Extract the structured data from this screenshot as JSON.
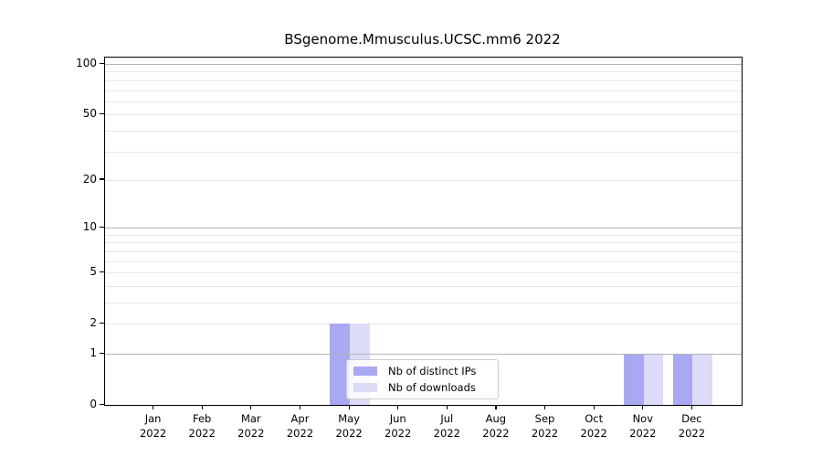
{
  "title": "BSgenome.Mmusculus.UCSC.mm6 2022",
  "chart_data": {
    "type": "bar",
    "categories": [
      "Jan",
      "Feb",
      "Mar",
      "Apr",
      "May",
      "Jun",
      "Jul",
      "Aug",
      "Sep",
      "Oct",
      "Nov",
      "Dec"
    ],
    "year_label": "2022",
    "series": [
      {
        "name": "Nb of distinct IPs",
        "color": "#a9a9f3",
        "values": [
          0,
          0,
          0,
          0,
          2,
          0,
          0,
          0,
          0,
          0,
          1,
          1
        ]
      },
      {
        "name": "Nb of downloads",
        "color": "#dcdcf8",
        "values": [
          0,
          0,
          0,
          0,
          2,
          0,
          0,
          0,
          0,
          0,
          1,
          1
        ]
      }
    ],
    "title": "BSgenome.Mmusculus.UCSC.mm6 2022",
    "xlabel": "",
    "ylabel": "",
    "yscale": "log1p",
    "ylim": [
      0,
      109
    ],
    "yticks": [
      0,
      1,
      2,
      5,
      10,
      20,
      50,
      100
    ],
    "major_gridlines": [
      1,
      10,
      100
    ],
    "minor_gridlines": [
      2,
      3,
      4,
      5,
      6,
      7,
      8,
      9,
      20,
      30,
      40,
      50,
      60,
      70,
      80,
      90
    ],
    "grid": "horizontal",
    "legend_position": "inside-bottom-center",
    "colors": {
      "major_grid": "#b4b4b4",
      "minor_grid": "#e7e7e7",
      "axis": "#000000"
    }
  }
}
